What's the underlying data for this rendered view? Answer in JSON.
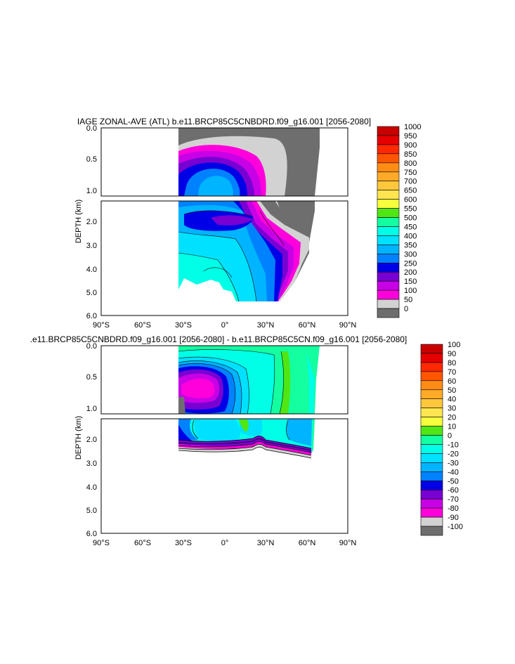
{
  "chart_data": [
    {
      "type": "heatmap",
      "title": "IAGE ZONAL-AVE (ATL) b.e11.BRCP85C5CNBDRD.f09_g16.001 [2056-2080]",
      "xlabel": "",
      "ylabel": "DEPTH (km)",
      "x_ticks": [
        "90°S",
        "60°S",
        "30°S",
        "0°",
        "30°N",
        "60°N",
        "90°N"
      ],
      "x_tick_values": [
        -90,
        -60,
        -30,
        0,
        30,
        60,
        90
      ],
      "y_ticks_upper": [
        "0.0",
        "0.5",
        "1.0"
      ],
      "y_ticks_upper_values": [
        0,
        0.5,
        1.0
      ],
      "y_ticks_lower": [
        "2.0",
        "3.0",
        "4.0",
        "5.0",
        "6.0"
      ],
      "y_ticks_lower_values": [
        2,
        3,
        4,
        5,
        6
      ],
      "xlim": [
        -90,
        90
      ],
      "ylim_upper": [
        0,
        1.1
      ],
      "ylim_lower": [
        1.2,
        6.0
      ],
      "colorbar": {
        "labels": [
          "1000",
          "950",
          "900",
          "850",
          "800",
          "750",
          "700",
          "650",
          "600",
          "550",
          "500",
          "450",
          "400",
          "350",
          "300",
          "250",
          "200",
          "150",
          "100",
          "50",
          "0"
        ],
        "colors": [
          "#c80000",
          "#e60000",
          "#ff2800",
          "#ff5500",
          "#ff8c14",
          "#ffaa28",
          "#ffc83c",
          "#ffe650",
          "#f5ff3c",
          "#50e614",
          "#14ffa0",
          "#00ffe6",
          "#00e1ff",
          "#00b4ff",
          "#0082ff",
          "#0000e6",
          "#7800d2",
          "#c800e6",
          "#ff00dc",
          "#d2d2d2",
          "#6e6e6e"
        ]
      }
    },
    {
      "type": "heatmap",
      "title": ".e11.BRCP85C5CNBDRD.f09_g16.001 [2056-2080] - b.e11.BRCP85C5CN.f09_g16.001 [2056-2080]",
      "xlabel": "",
      "ylabel": "DEPTH (km)",
      "x_ticks": [
        "90°S",
        "60°S",
        "30°S",
        "0°",
        "30°N",
        "60°N",
        "90°N"
      ],
      "x_tick_values": [
        -90,
        -60,
        -30,
        0,
        30,
        60,
        90
      ],
      "y_ticks_upper": [
        "0.0",
        "0.5",
        "1.0"
      ],
      "y_ticks_upper_values": [
        0,
        0.5,
        1.0
      ],
      "y_ticks_lower": [
        "2.0",
        "3.0",
        "4.0",
        "5.0",
        "6.0"
      ],
      "y_ticks_lower_values": [
        2,
        3,
        4,
        5,
        6
      ],
      "xlim": [
        -90,
        90
      ],
      "ylim_upper": [
        0,
        1.1
      ],
      "ylim_lower": [
        1.2,
        6.0
      ],
      "colorbar": {
        "labels": [
          "100",
          "90",
          "80",
          "70",
          "60",
          "50",
          "40",
          "30",
          "20",
          "10",
          "0",
          "-10",
          "-20",
          "-30",
          "-40",
          "-50",
          "-60",
          "-70",
          "-80",
          "-90",
          "-100"
        ],
        "colors": [
          "#c80000",
          "#e60000",
          "#ff2800",
          "#ff5500",
          "#ff8c14",
          "#ffaa28",
          "#ffc83c",
          "#ffe650",
          "#f5ff3c",
          "#50e614",
          "#14ffa0",
          "#00ffe6",
          "#00e1ff",
          "#00b4ff",
          "#0082ff",
          "#0000e6",
          "#7800d2",
          "#c800e6",
          "#ff00dc",
          "#d2d2d2",
          "#6e6e6e"
        ]
      }
    }
  ]
}
